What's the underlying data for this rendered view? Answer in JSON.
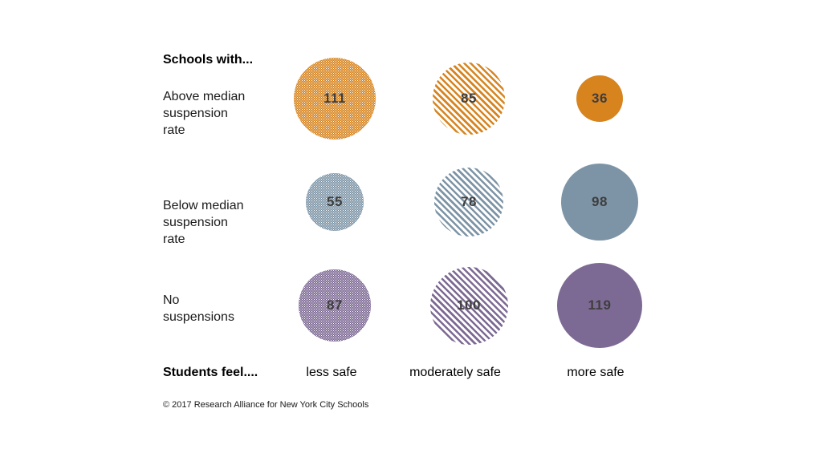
{
  "chart_data": {
    "type": "bubble",
    "row_axis_title": "Schools with...",
    "col_axis_title": "Students feel....",
    "columns": [
      "less safe",
      "moderately safe",
      "more safe"
    ],
    "rows": [
      "Above median suspension rate",
      "Below median suspension rate",
      "No suspensions"
    ],
    "row_label_lines": [
      [
        "Above median",
        "suspension",
        "rate"
      ],
      [
        "Below median",
        "suspension",
        "rate"
      ],
      [
        "No",
        "suspensions"
      ]
    ],
    "series": [
      {
        "name": "Above median suspension rate",
        "color": "#D7841F",
        "values": [
          111,
          85,
          36
        ]
      },
      {
        "name": "Below median suspension rate",
        "color": "#7D94A6",
        "values": [
          55,
          78,
          98
        ]
      },
      {
        "name": "No suspensions",
        "color": "#7D6A94",
        "values": [
          87,
          100,
          119
        ]
      }
    ],
    "column_fill_patterns": [
      "fine-dots",
      "diagonal-stripes",
      "solid"
    ],
    "size_encoding": "bubble radius proportional to sqrt(value)",
    "value_label_color": "#3E3E3E",
    "background_color": "#ffffff",
    "copyright": "© 2017 Research Alliance for New York City Schools"
  }
}
